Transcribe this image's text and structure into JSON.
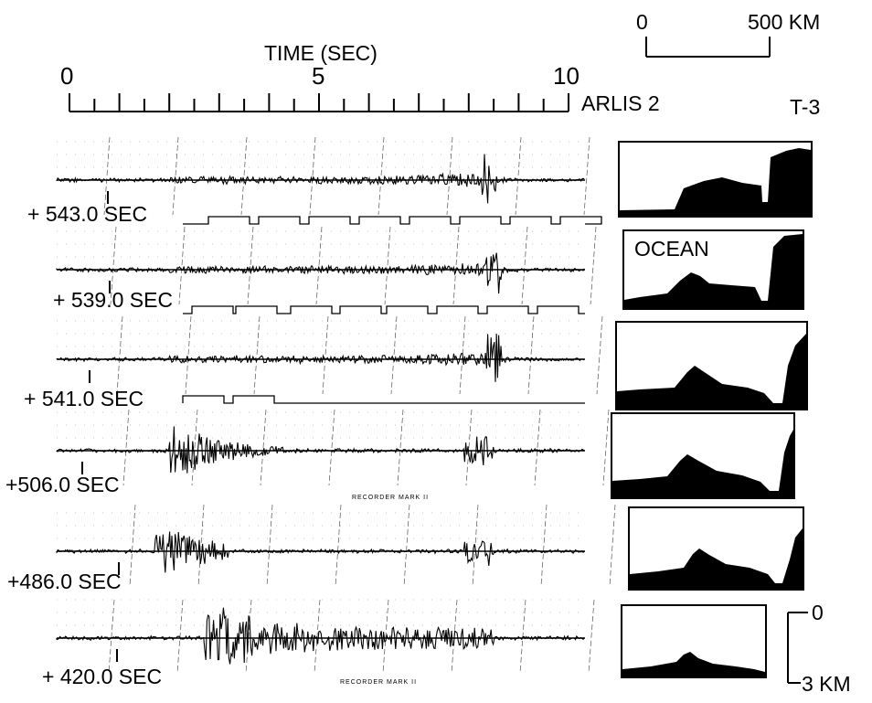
{
  "time_axis": {
    "title": "TIME (SEC)",
    "tick_labels": [
      "0",
      "5",
      "10"
    ],
    "max_seconds": 10
  },
  "station_left": "ARLIS 2",
  "station_right": "T-3",
  "scale_bar": {
    "start_label": "0",
    "end_label": "500 KM"
  },
  "depth_scale": {
    "top_label": "0",
    "bottom_label": "3 KM"
  },
  "profile_label": "OCEAN",
  "recorder_mark": "RECORDER MARK II",
  "traces": [
    {
      "offset": "+ 543.0 SEC",
      "burst_time": 8.4
    },
    {
      "offset": "+ 539.0 SEC",
      "burst_time": 8.5
    },
    {
      "offset": "+ 541.0 SEC",
      "burst_time": 8.5
    },
    {
      "offset": "+506.0 SEC",
      "burst_time": 2.3
    },
    {
      "offset": "+486.0 SEC",
      "burst_time": 2.0
    },
    {
      "offset": "+ 420.0 SEC",
      "burst_time": 3.0
    }
  ],
  "colors": {
    "ink": "#000000",
    "paper": "#ffffff"
  }
}
